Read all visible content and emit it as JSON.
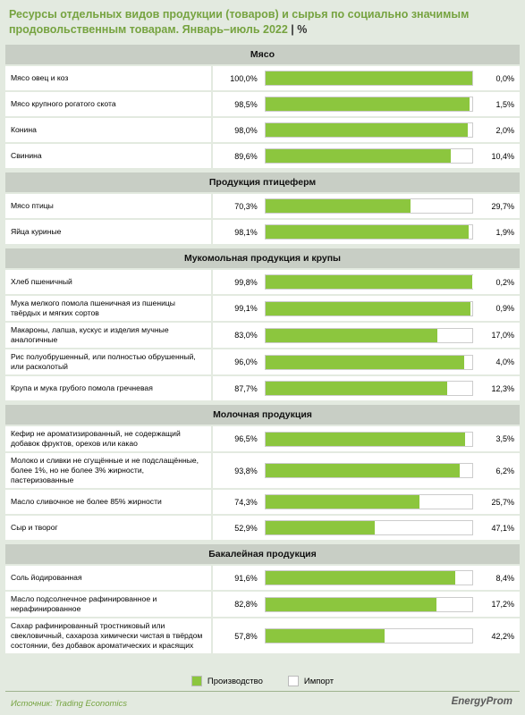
{
  "chart_data": {
    "type": "stacked-bar-h",
    "title": "Ресурсы отдельных видов продукции (товаров) и сырья по социально значимым продовольственным товарам. Январь–июль 2022",
    "unit": "%",
    "series": [
      {
        "name": "Производство",
        "color": "#8cc63e"
      },
      {
        "name": "Импорт",
        "color": "#ffffff"
      }
    ],
    "groups": [
      {
        "title": "Мясо",
        "categories": [
          "Мясо овец и коз",
          "Мясо крупного рогатого скота",
          "Конина",
          "Свинина"
        ],
        "values": [
          [
            100.0,
            0.0
          ],
          [
            98.5,
            1.5
          ],
          [
            98.0,
            2.0
          ],
          [
            89.6,
            10.4
          ]
        ],
        "value_labels": [
          [
            "100,0%",
            "0,0%"
          ],
          [
            "98,5%",
            "1,5%"
          ],
          [
            "98,0%",
            "2,0%"
          ],
          [
            "89,6%",
            "10,4%"
          ]
        ]
      },
      {
        "title": "Продукция птицеферм",
        "categories": [
          "Мясо птицы",
          "Яйца куриные"
        ],
        "values": [
          [
            70.3,
            29.7
          ],
          [
            98.1,
            1.9
          ]
        ],
        "value_labels": [
          [
            "70,3%",
            "29,7%"
          ],
          [
            "98,1%",
            "1,9%"
          ]
        ]
      },
      {
        "title": "Мукомольная продукция и крупы",
        "categories": [
          "Хлеб пшеничный",
          "Мука мелкого помола пшеничная из пшеницы твёрдых и мягких сортов",
          "Макароны, лапша, кускус и изделия мучные аналогичные",
          "Рис полуобрушенный, или полностью обрушенный, или расколотый",
          "Крупа и мука грубого помола гречневая"
        ],
        "values": [
          [
            99.8,
            0.2
          ],
          [
            99.1,
            0.9
          ],
          [
            83.0,
            17.0
          ],
          [
            96.0,
            4.0
          ],
          [
            87.7,
            12.3
          ]
        ],
        "value_labels": [
          [
            "99,8%",
            "0,2%"
          ],
          [
            "99,1%",
            "0,9%"
          ],
          [
            "83,0%",
            "17,0%"
          ],
          [
            "96,0%",
            "4,0%"
          ],
          [
            "87,7%",
            "12,3%"
          ]
        ]
      },
      {
        "title": "Молочная продукция",
        "categories": [
          "Кефир не ароматизированный, не содержащий добавок фруктов, орехов или какао",
          "Молоко и сливки не сгущённые и не подслащённые, более 1%, но не более 3% жирности, пастеризованные",
          "Масло сливочное не более 85% жирности",
          "Сыр и творог"
        ],
        "values": [
          [
            96.5,
            3.5
          ],
          [
            93.8,
            6.2
          ],
          [
            74.3,
            25.7
          ],
          [
            52.9,
            47.1
          ]
        ],
        "value_labels": [
          [
            "96,5%",
            "3,5%"
          ],
          [
            "93,8%",
            "6,2%"
          ],
          [
            "74,3%",
            "25,7%"
          ],
          [
            "52,9%",
            "47,1%"
          ]
        ]
      },
      {
        "title": "Бакалейная продукция",
        "categories": [
          "Соль йодированная",
          "Масло подсолнечное рафинированное и нерафинированное",
          "Сахар рафинированный тростниковый или свекловичный, сахароза химически чистая в твёрдом состоянии, без добавок ароматических и красящих"
        ],
        "values": [
          [
            91.6,
            8.4
          ],
          [
            82.8,
            17.2
          ],
          [
            57.8,
            42.2
          ]
        ],
        "value_labels": [
          [
            "91,6%",
            "8,4%"
          ],
          [
            "82,8%",
            "17,2%"
          ],
          [
            "57,8%",
            "42,2%"
          ]
        ]
      }
    ],
    "source": "Источник: Trading Economics",
    "logo": "EnergyProm"
  }
}
